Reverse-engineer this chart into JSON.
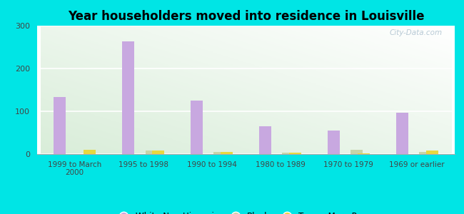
{
  "title": "Year householders moved into residence in Louisville",
  "categories": [
    "1999 to March\n2000",
    "1995 to 1998",
    "1990 to 1994",
    "1980 to 1989",
    "1970 to 1979",
    "1969 or earlier"
  ],
  "white_non_hispanic": [
    133,
    263,
    125,
    65,
    55,
    97
  ],
  "black": [
    0,
    8,
    5,
    3,
    10,
    5
  ],
  "two_or_more_races": [
    10,
    8,
    5,
    4,
    2,
    8
  ],
  "bar_color_white": "#c8a8e0",
  "bar_color_black": "#c8d4a8",
  "bar_color_two": "#e8d840",
  "background_outer": "#00e5e5",
  "ylim": [
    0,
    300
  ],
  "yticks": [
    0,
    100,
    200,
    300
  ],
  "bar_width": 0.18,
  "watermark": "City-Data.com"
}
